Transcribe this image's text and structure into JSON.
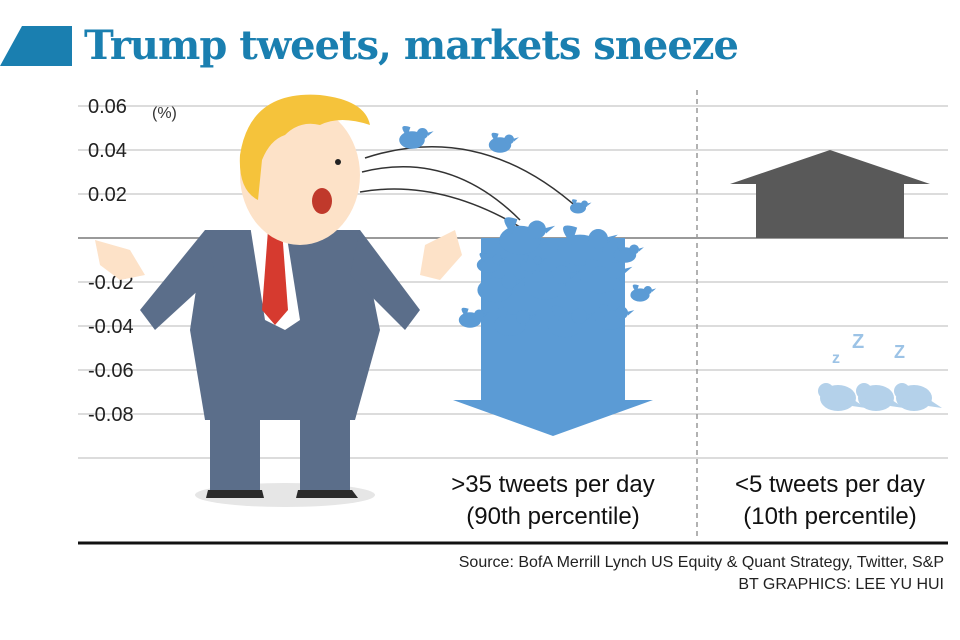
{
  "header": {
    "title": "Trump tweets, markets sneeze"
  },
  "chart_data": {
    "type": "bar",
    "title": "Trump tweets, markets sneeze",
    "unit_label": "(%)",
    "ylabel": "",
    "xlabel": "",
    "ylim": [
      -0.1,
      0.07
    ],
    "yticks": [
      0.06,
      0.04,
      0.02,
      -0.02,
      -0.04,
      -0.06,
      -0.08
    ],
    "ytick_labels": [
      "0.06",
      "0.04",
      "0.02",
      "-0.02",
      "-0.04",
      "-0.06",
      "-0.08"
    ],
    "categories": [
      {
        "line1": ">35 tweets per day",
        "line2": "(90th percentile)"
      },
      {
        "line1": "<5 tweets per day",
        "line2": "(10th percentile)"
      }
    ],
    "values": [
      -0.09,
      0.04
    ],
    "colors": {
      "negative": "#5b9bd5",
      "positive": "#595959",
      "grid": "#c8c8c8",
      "axis": "#111111",
      "sleep_text": "#9cc3e6",
      "sleep_birds": "#b4d1ea"
    },
    "sleep_letters": [
      "z",
      "Z",
      "Z"
    ]
  },
  "footer": {
    "source": "Source: BofA Merrill Lynch US Equity & Quant Strategy, Twitter, S&P",
    "credit": "BT GRAPHICS: LEE YU HUI"
  },
  "theme": {
    "title_color": "#1a7fb0",
    "suit": "#5b6e8a",
    "hair": "#f5c33b",
    "tie": "#d63a2f",
    "skin": "#fde2c8",
    "bird": "#5b9bd5"
  }
}
